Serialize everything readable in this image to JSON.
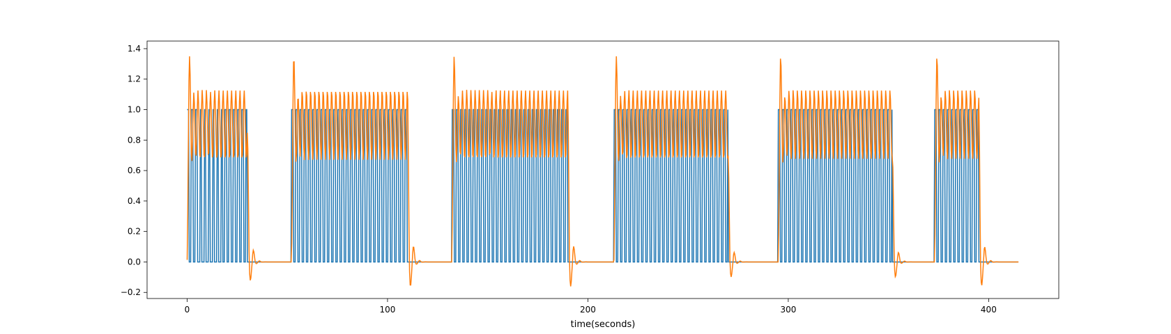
{
  "chart_data": {
    "type": "line",
    "title": "",
    "xlabel": "time(seconds)",
    "ylabel": "",
    "xlim": [
      -20,
      435
    ],
    "ylim": [
      -0.24,
      1.45
    ],
    "xticks": [
      0,
      100,
      200,
      300,
      400
    ],
    "xtick_labels": [
      "0",
      "100",
      "200",
      "300",
      "400"
    ],
    "yticks": [
      -0.2,
      0.0,
      0.2,
      0.4,
      0.6,
      0.8,
      1.0,
      1.2,
      1.4
    ],
    "ytick_labels": [
      "−0.2",
      "0.0",
      "0.2",
      "0.4",
      "0.6",
      "0.8",
      "1.0",
      "1.2",
      "1.4"
    ],
    "grid": false,
    "legend": "none",
    "series": [
      {
        "color": "#1f77b4",
        "description": "binary pulse train (0/1), bursts of unit pulses every ~2 s",
        "bursts": [
          [
            0,
            30
          ],
          [
            52,
            110
          ],
          [
            132,
            190
          ],
          [
            213,
            270
          ],
          [
            295,
            352
          ],
          [
            373,
            395
          ]
        ],
        "pulse_amplitude": 1.0,
        "pulse_period": 2.1
      },
      {
        "color": "#ff7f0e",
        "description": "filtered response: oscillates ~0.8-1.25 during bursts, overshoot ~1.35, undershoot ~-0.16 after bursts",
        "peak": 1.35,
        "trough": -0.16
      }
    ]
  }
}
